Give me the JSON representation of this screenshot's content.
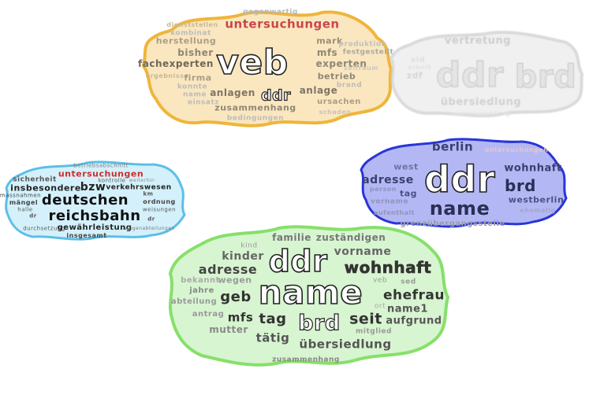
{
  "clouds": {
    "orange": {
      "fill": "#fbe7bf",
      "stroke": "#efb53a",
      "words": [
        "gegenwartig",
        "untersuchungen",
        "dienststellen",
        "kombinat",
        "herstellung",
        "mark",
        "produktion",
        "bisher",
        "mfs",
        "festgestellt",
        "fachexperten",
        "experten",
        "veb",
        "zeitraum",
        "ergebnisse",
        "firma",
        "betrieb",
        "konnte",
        "brand",
        "name",
        "anlagen",
        "ddr",
        "anlage",
        "einsatz",
        "ursachen",
        "zusammenhang",
        "schaden",
        "bedingungen"
      ]
    },
    "grey": {
      "fill": "#e8e8e8",
      "stroke": "#c9c9c9",
      "words": [
        "vertretung",
        "sid",
        "arbeit",
        "zdf",
        "ddr",
        "brd",
        "übersiedlung",
        "ausreiseantrag"
      ]
    },
    "blue": {
      "fill": "#b3b8f5",
      "stroke": "#2a35d6",
      "words": [
        "berlin",
        "untersuchungen",
        "west",
        "wohnhaft",
        "adresse",
        "ddr",
        "brd",
        "person",
        "tag",
        "vorname",
        "westberlin",
        "name",
        "aufenthalt",
        "ehemalig",
        "grenzübergangsstelle"
      ]
    },
    "lightblue": {
      "fill": "#d4f1fb",
      "stroke": "#5bbfe8",
      "words": [
        "betriebsabschnitt",
        "untersuchungen",
        "sicherheit",
        "kontrolle",
        "weiterhin",
        "insbesondere",
        "bzw",
        "verkehrswesen",
        "massnahmen",
        "km",
        "mängel",
        "deutschen",
        "ordnung",
        "halle",
        "weisungen",
        "dr",
        "reichsbahn",
        "dr",
        "durchsetzung",
        "gewährleistung",
        "wagenabteilungen",
        "insgesamt"
      ]
    },
    "green": {
      "fill": "#d7f5d0",
      "stroke": "#86e06a",
      "words": [
        "familie",
        "zuständigen",
        "kind",
        "kinder",
        "ddr",
        "vorname",
        "adresse",
        "wohnhaft",
        "bekannt",
        "wegen",
        "veb",
        "sed",
        "jahre",
        "name",
        "abteilung",
        "geb",
        "ehefrau",
        "antrag",
        "ort",
        "name1",
        "mfs",
        "tag",
        "brd",
        "seit",
        "aufgrund",
        "mutter",
        "mitglied",
        "tätig",
        "übersiedlung",
        "zusammenhang"
      ]
    }
  }
}
